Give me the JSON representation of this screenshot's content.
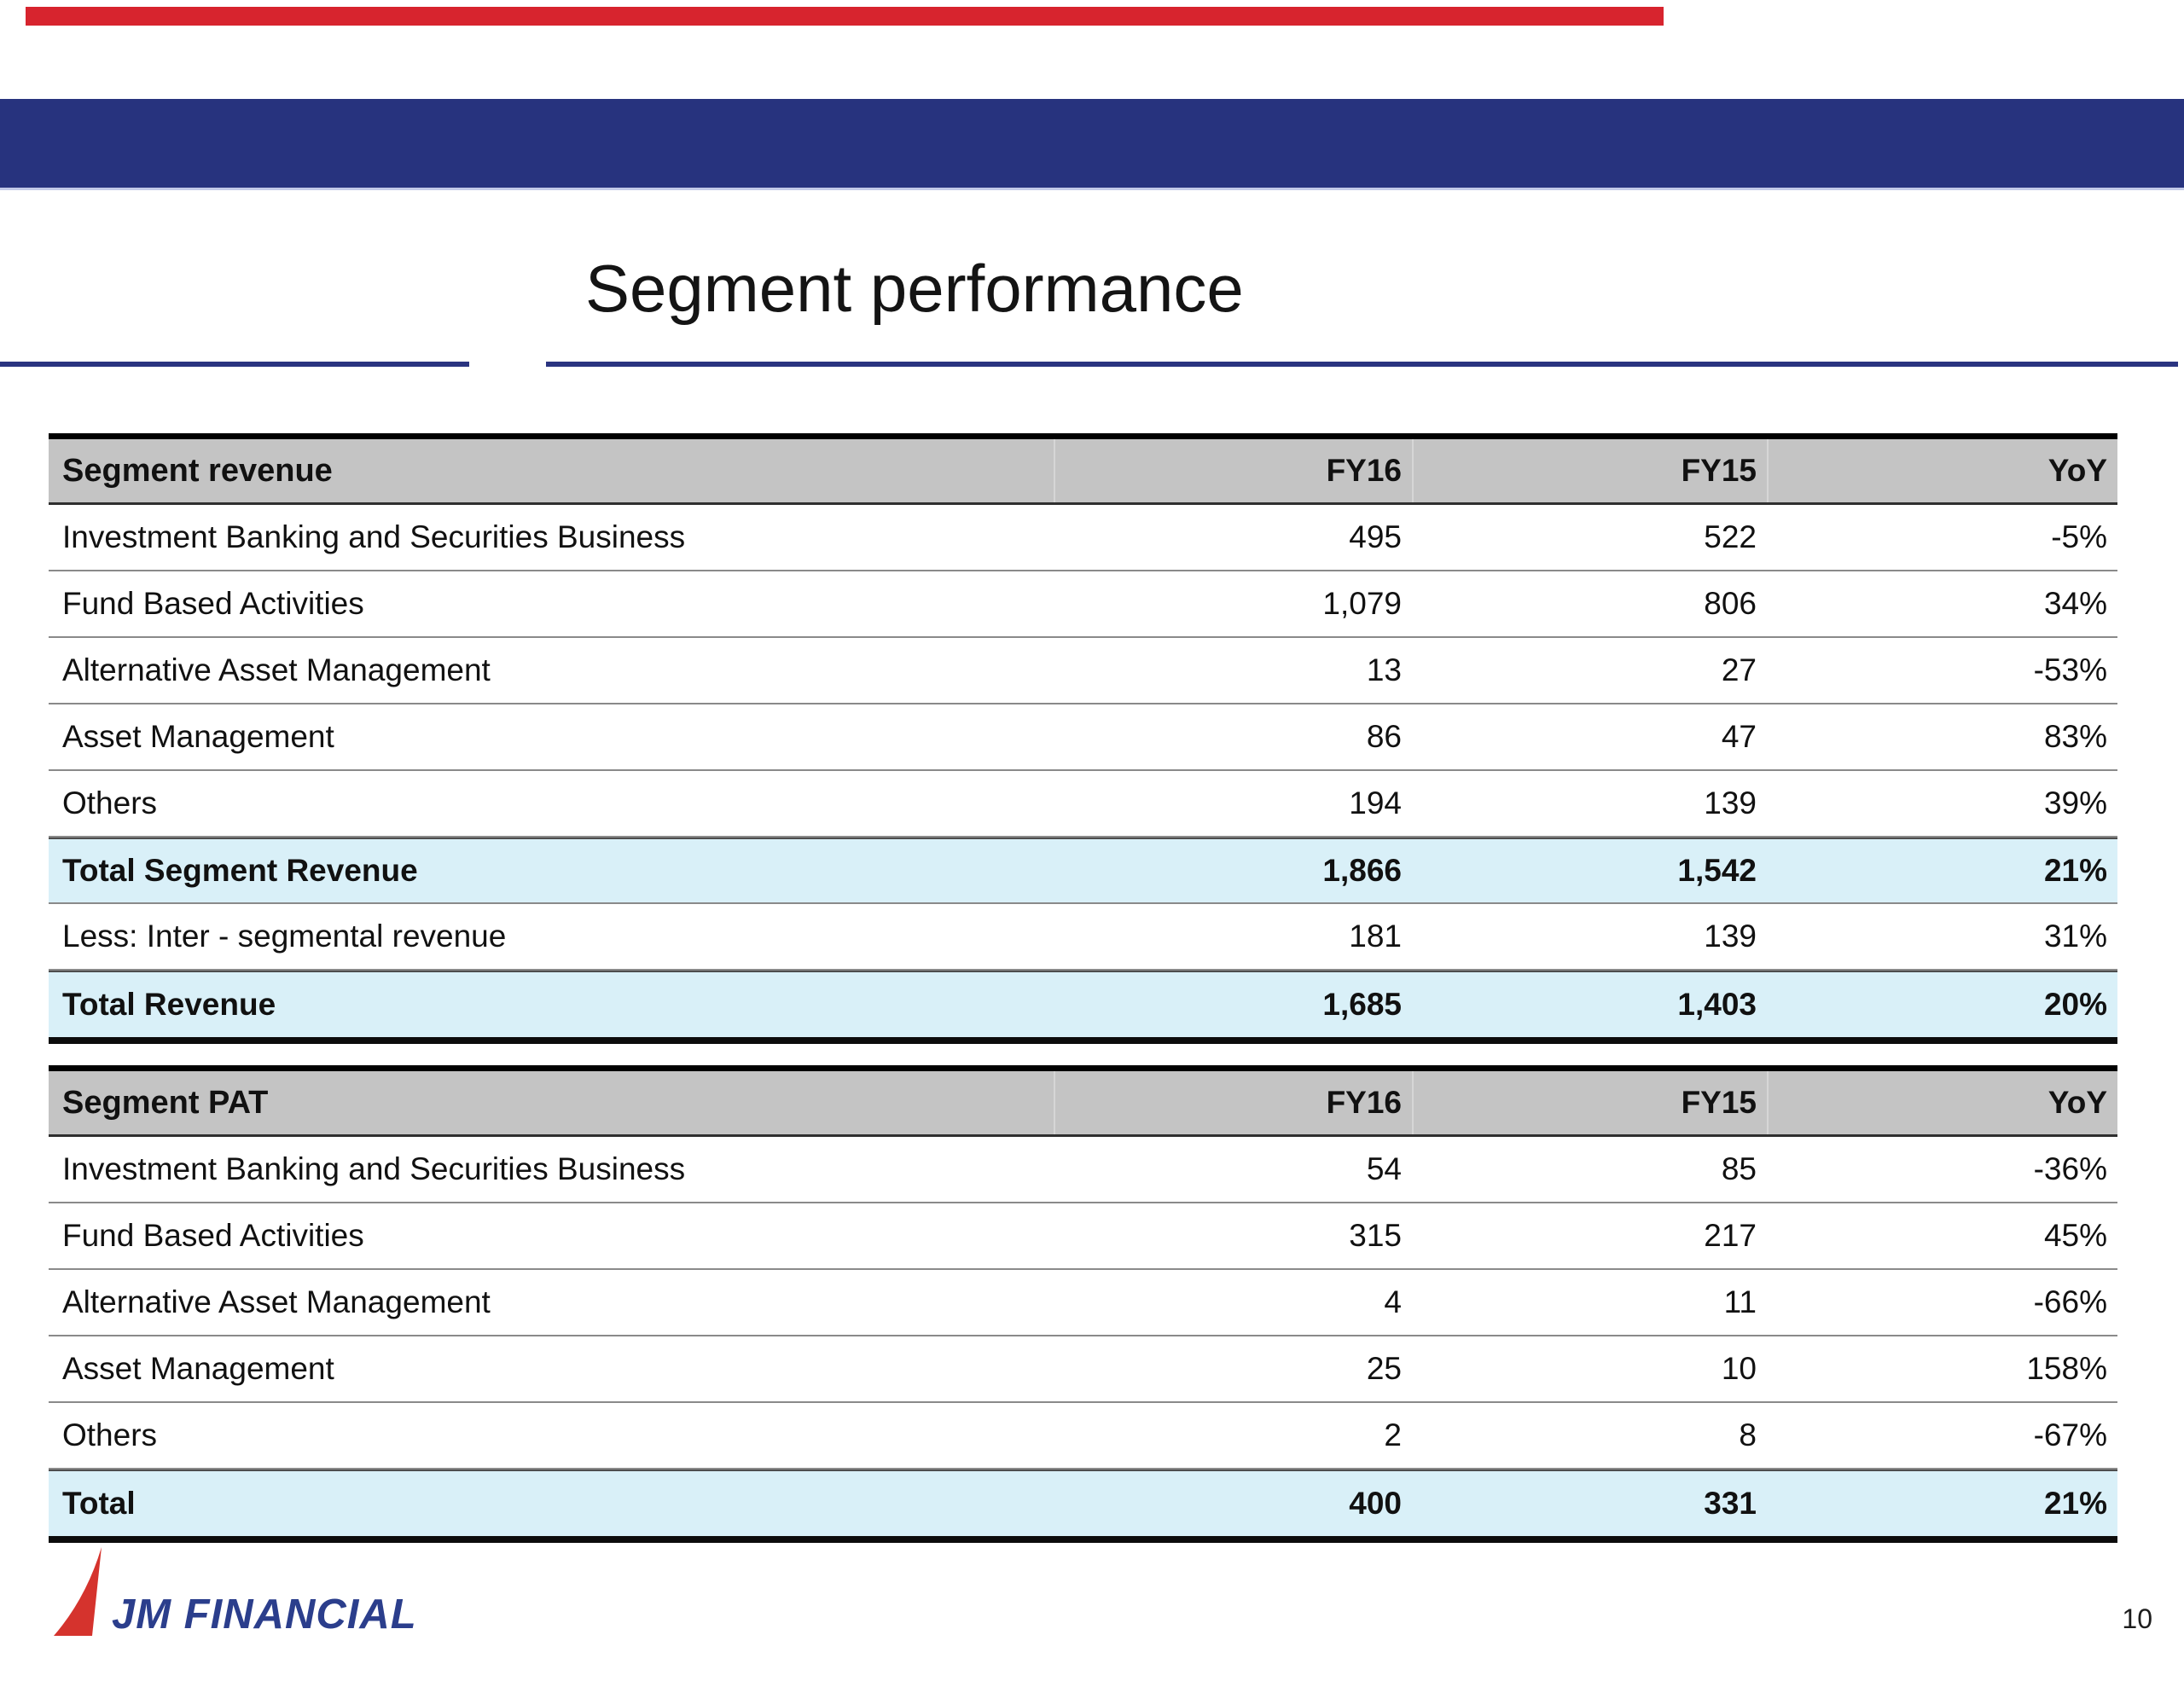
{
  "header": {
    "title": "Segment performance"
  },
  "tables": [
    {
      "name": "Segment revenue",
      "columns": [
        "FY16",
        "FY15",
        "YoY"
      ],
      "rows": [
        {
          "label": "Investment Banking and Securities Business",
          "fy16": "495",
          "fy15": "522",
          "yoy": "-5%",
          "emphasis": "normal"
        },
        {
          "label": "Fund Based Activities",
          "fy16": "1,079",
          "fy15": "806",
          "yoy": "34%",
          "emphasis": "normal"
        },
        {
          "label": "Alternative Asset Management",
          "fy16": "13",
          "fy15": "27",
          "yoy": "-53%",
          "emphasis": "normal"
        },
        {
          "label": "Asset Management",
          "fy16": "86",
          "fy15": "47",
          "yoy": "83%",
          "emphasis": "normal"
        },
        {
          "label": "Others",
          "fy16": "194",
          "fy15": "139",
          "yoy": "39%",
          "emphasis": "normal"
        },
        {
          "label": "Total Segment Revenue",
          "fy16": "1,866",
          "fy15": "1,542",
          "yoy": "21%",
          "emphasis": "total"
        },
        {
          "label": "Less: Inter - segmental revenue",
          "fy16": "181",
          "fy15": "139",
          "yoy": "31%",
          "emphasis": "normal"
        },
        {
          "label": "Total Revenue",
          "fy16": "1,685",
          "fy15": "1,403",
          "yoy": "20%",
          "emphasis": "total"
        }
      ]
    },
    {
      "name": "Segment PAT",
      "columns": [
        "FY16",
        "FY15",
        "YoY"
      ],
      "rows": [
        {
          "label": "Investment Banking and Securities Business",
          "fy16": "54",
          "fy15": "85",
          "yoy": "-36%",
          "emphasis": "normal"
        },
        {
          "label": "Fund Based Activities",
          "fy16": "315",
          "fy15": "217",
          "yoy": "45%",
          "emphasis": "normal"
        },
        {
          "label": "Alternative Asset Management",
          "fy16": "4",
          "fy15": "11",
          "yoy": "-66%",
          "emphasis": "normal"
        },
        {
          "label": "Asset Management",
          "fy16": "25",
          "fy15": "10",
          "yoy": "158%",
          "emphasis": "normal"
        },
        {
          "label": "Others",
          "fy16": "2",
          "fy15": "8",
          "yoy": "-67%",
          "emphasis": "normal"
        },
        {
          "label": "Total",
          "fy16": "400",
          "fy15": "331",
          "yoy": "21%",
          "emphasis": "total"
        }
      ]
    }
  ],
  "footer": {
    "logo_text": "JM FINANCIAL",
    "page_number": "10"
  },
  "colors": {
    "top_red_bar": "#d7242e",
    "navy_band": "#27337e",
    "divider_navy": "#2a3480",
    "table_header_gray": "#c4c4c4",
    "total_row_blue": "#d9f0f8",
    "logo_red": "#d5332d",
    "logo_navy": "#2b3e8c"
  }
}
